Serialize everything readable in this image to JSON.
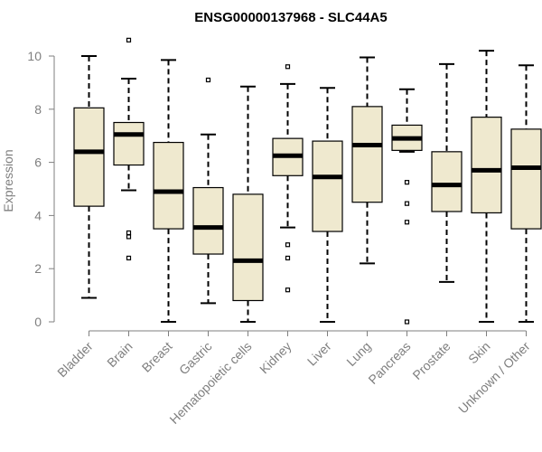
{
  "chart_data": {
    "type": "box",
    "title": "ENSG00000137968 - SLC44A5",
    "xlabel": "",
    "ylabel": "Expression",
    "ylim": [
      0,
      10.5
    ],
    "yticks": [
      0,
      2,
      4,
      6,
      8,
      10
    ],
    "box_color": "#efe9cf",
    "categories": [
      "Bladder",
      "Brain",
      "Breast",
      "Gastric",
      "Hematopoietic cells",
      "Kidney",
      "Liver",
      "Lung",
      "Pancreas",
      "Prostate",
      "Skin",
      "Unknown / Other"
    ],
    "boxes": [
      {
        "low": 0.9,
        "q1": 4.35,
        "median": 6.4,
        "q3": 8.05,
        "high": 10.0,
        "outliers": []
      },
      {
        "low": 4.95,
        "q1": 5.9,
        "median": 7.05,
        "q3": 7.5,
        "high": 9.15,
        "outliers": [
          10.6,
          3.35,
          3.2,
          2.4
        ]
      },
      {
        "low": 0.0,
        "q1": 3.5,
        "median": 4.9,
        "q3": 6.75,
        "high": 9.85,
        "outliers": []
      },
      {
        "low": 0.7,
        "q1": 2.55,
        "median": 3.55,
        "q3": 5.05,
        "high": 7.05,
        "outliers": [
          9.1
        ]
      },
      {
        "low": 0.0,
        "q1": 0.8,
        "median": 2.3,
        "q3": 4.8,
        "high": 8.85,
        "outliers": []
      },
      {
        "low": 3.55,
        "q1": 5.5,
        "median": 6.25,
        "q3": 6.9,
        "high": 8.95,
        "outliers": [
          9.6,
          2.9,
          2.4,
          1.2
        ]
      },
      {
        "low": 0.0,
        "q1": 3.4,
        "median": 5.45,
        "q3": 6.8,
        "high": 8.8,
        "outliers": []
      },
      {
        "low": 2.2,
        "q1": 4.5,
        "median": 6.65,
        "q3": 8.1,
        "high": 9.95,
        "outliers": []
      },
      {
        "low": 6.4,
        "q1": 6.45,
        "median": 6.9,
        "q3": 7.4,
        "high": 8.75,
        "outliers": [
          5.25,
          4.45,
          3.75,
          0.0
        ]
      },
      {
        "low": 1.5,
        "q1": 4.15,
        "median": 5.15,
        "q3": 6.4,
        "high": 9.7,
        "outliers": []
      },
      {
        "low": 0.0,
        "q1": 4.1,
        "median": 5.7,
        "q3": 7.7,
        "high": 10.2,
        "outliers": []
      },
      {
        "low": 0.0,
        "q1": 3.5,
        "median": 5.8,
        "q3": 7.25,
        "high": 9.65,
        "outliers": []
      }
    ]
  }
}
